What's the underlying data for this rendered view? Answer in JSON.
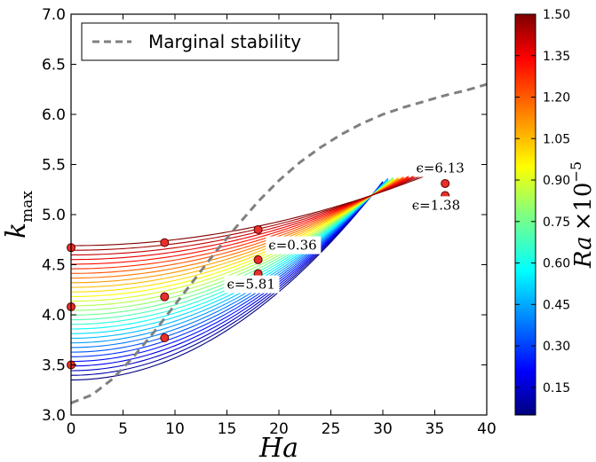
{
  "chart_data": {
    "type": "line",
    "xlabel": "Ha",
    "ylabel_main": "k",
    "ylabel_sub": "max",
    "xlim": [
      0,
      40
    ],
    "ylim": [
      3.0,
      7.0
    ],
    "x_ticks": [
      "0",
      "5",
      "10",
      "15",
      "20",
      "25",
      "30",
      "35",
      "40"
    ],
    "y_ticks": [
      "3.0",
      "3.5",
      "4.0",
      "4.5",
      "5.0",
      "5.5",
      "6.0",
      "6.5",
      "7.0"
    ],
    "grid": false,
    "legend": {
      "location": "top-left",
      "entries": [
        {
          "label": "Marginal stability",
          "style": "dashed",
          "color": "#808080"
        }
      ]
    },
    "colorbar": {
      "label_main": "Ra",
      "label_times": "×10",
      "label_exp": "−5",
      "range": [
        0.05,
        1.5
      ],
      "ticks": [
        "0.15",
        "0.30",
        "0.45",
        "0.60",
        "0.75",
        "0.90",
        "1.05",
        "1.20",
        "1.35",
        "1.50"
      ],
      "colormap": "jet"
    },
    "marginal_stability": {
      "x": [
        0,
        2,
        4,
        6,
        8,
        10,
        12,
        14,
        16,
        18,
        20,
        22,
        24,
        26,
        28,
        30,
        32,
        34,
        36,
        38,
        40
      ],
      "y": [
        3.12,
        3.2,
        3.36,
        3.58,
        3.83,
        4.1,
        4.37,
        4.64,
        4.89,
        5.13,
        5.34,
        5.52,
        5.67,
        5.8,
        5.91,
        6.0,
        6.07,
        6.13,
        6.19,
        6.24,
        6.3
      ]
    },
    "ra_family": {
      "count": 30,
      "ra_range": [
        0.05,
        1.5
      ],
      "k_at_ha0_range": [
        3.35,
        4.69
      ],
      "slope_at_ha0_range": [
        0.0022,
        0.0006
      ]
    },
    "points": [
      {
        "x": 0,
        "y": 3.5
      },
      {
        "x": 0,
        "y": 4.08
      },
      {
        "x": 0,
        "y": 4.67
      },
      {
        "x": 9,
        "y": 3.77
      },
      {
        "x": 9,
        "y": 4.18
      },
      {
        "x": 9,
        "y": 4.72
      },
      {
        "x": 18,
        "y": 4.41
      },
      {
        "x": 18,
        "y": 4.55
      },
      {
        "x": 18,
        "y": 4.85
      },
      {
        "x": 36,
        "y": 5.19
      },
      {
        "x": 36,
        "y": 5.31
      }
    ],
    "annotations": [
      {
        "text": "ϵ=6.13",
        "x": 33.2,
        "y": 5.42
      },
      {
        "text": "ϵ=1.38",
        "x": 32.8,
        "y": 5.05
      },
      {
        "text": "ϵ=0.36",
        "x": 19.0,
        "y": 4.65
      },
      {
        "text": "ϵ=5.81",
        "x": 15.0,
        "y": 4.26
      }
    ]
  }
}
